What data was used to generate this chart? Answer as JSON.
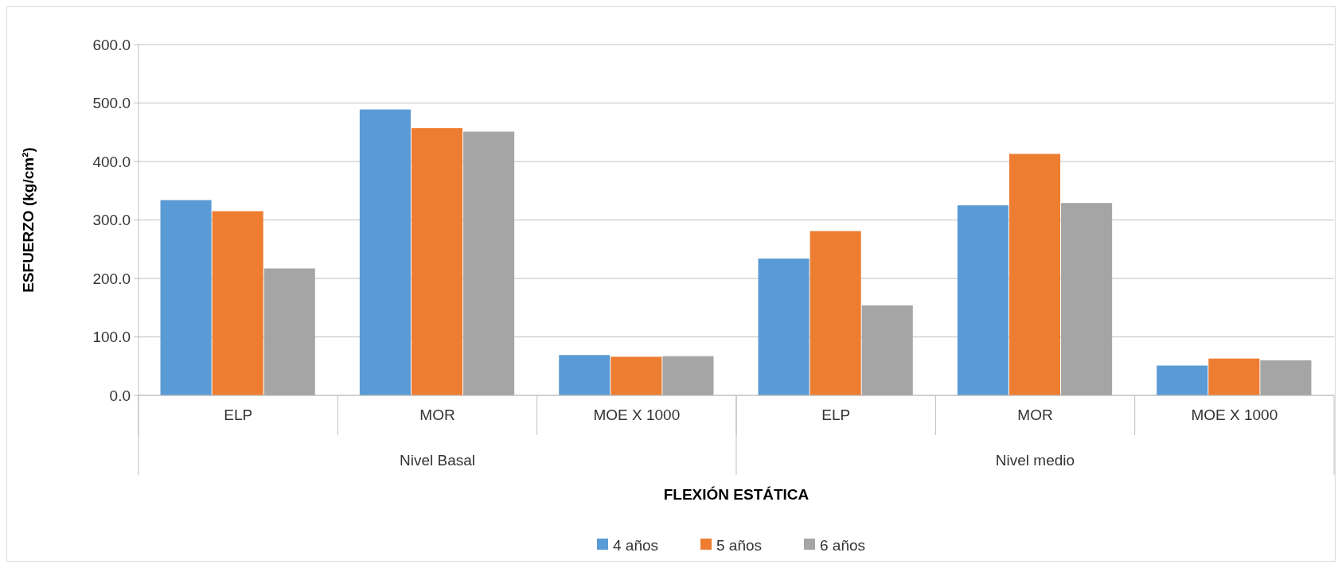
{
  "chart_data": {
    "type": "bar",
    "xlabel": "FLEXIÓN ESTÁTICA",
    "ylabel": "ESFUERZO (kg/cm²)",
    "categories": [
      "ELP",
      "MOR",
      "MOE X 1000",
      "ELP",
      "MOR",
      "MOE X 1000"
    ],
    "annotations": [
      "Nivel Basal",
      "Nivel medio"
    ],
    "series": [
      {
        "name": "4 años",
        "color": "#5b9bd5",
        "values": [
          334,
          489,
          69,
          234,
          325,
          51
        ]
      },
      {
        "name": "5 años",
        "color": "#ed7d31",
        "values": [
          315,
          457,
          66,
          281,
          413,
          63
        ]
      },
      {
        "name": "6 años",
        "color": "#a5a5a5",
        "values": [
          217,
          451,
          67,
          154,
          329,
          60
        ]
      }
    ],
    "ylim": [
      0,
      600
    ],
    "yticks": [
      {
        "value": 0,
        "label": "0.0"
      },
      {
        "value": 100,
        "label": "100.0"
      },
      {
        "value": 200,
        "label": "200.0"
      },
      {
        "value": 300,
        "label": "300.0"
      },
      {
        "value": 400,
        "label": "400.0"
      },
      {
        "value": 500,
        "label": "500.0"
      },
      {
        "value": 600,
        "label": "600.0"
      }
    ],
    "grid": "y",
    "legend": "bottom"
  }
}
